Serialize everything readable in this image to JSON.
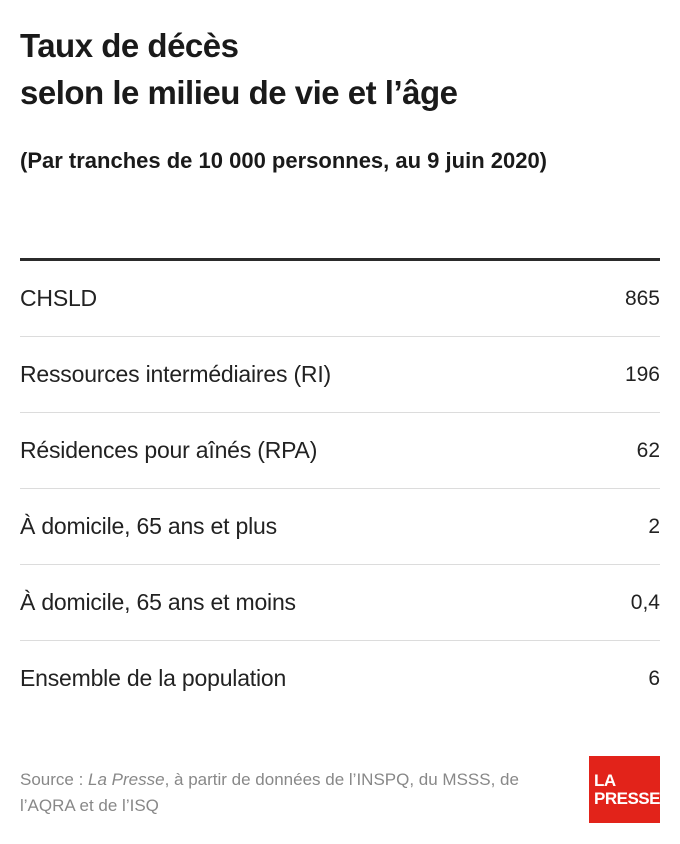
{
  "chart_data": {
    "type": "table",
    "title_line1": "Taux de décès",
    "title_line2": "selon le milieu de vie et l’âge",
    "subtitle": "(Par tranches de 10 000 personnes, au 9 juin 2020)",
    "rows": [
      {
        "label": "CHSLD",
        "value": "865"
      },
      {
        "label": "Ressources intermédiaires (RI)",
        "value": "196"
      },
      {
        "label": "Résidences pour aînés (RPA)",
        "value": "62"
      },
      {
        "label": "À domicile, 65 ans et plus",
        "value": "2"
      },
      {
        "label": "À domicile, 65 ans et moins",
        "value": "0,4"
      },
      {
        "label": "Ensemble de la population",
        "value": "6"
      }
    ]
  },
  "footer": {
    "source_prefix": "Source : ",
    "source_publication": "La Presse",
    "source_rest": ", à partir de données de l’INSPQ, du MSSS, de l’AQRA et de l’ISQ"
  },
  "logo": {
    "line1": "LA",
    "line2": "PRESSE",
    "color": "#e2231a"
  }
}
